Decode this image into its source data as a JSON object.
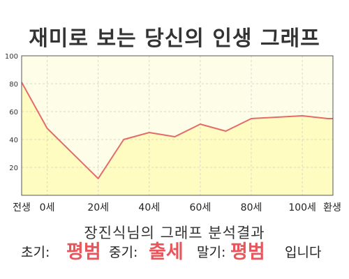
{
  "title": "재미로 보는 당신의 인생 그래프",
  "chart_data": {
    "type": "area",
    "x_categories": [
      "전생",
      "0세",
      "20세",
      "40세",
      "60세",
      "80세",
      "100세",
      "환생"
    ],
    "x_tick_positions": [
      -10,
      0,
      20,
      40,
      60,
      80,
      100,
      112
    ],
    "x": [
      -10,
      0,
      20,
      30,
      40,
      50,
      60,
      70,
      80,
      90,
      100,
      110,
      112
    ],
    "y": [
      81,
      48,
      12,
      40,
      45,
      42,
      51,
      46,
      55,
      56,
      57,
      55,
      55
    ],
    "ylim": [
      0,
      100
    ],
    "y_ticks": [
      20,
      40,
      60,
      80,
      100
    ],
    "grid": true,
    "line_color": "#e56a6a",
    "fill_color": "#fffcc2",
    "plot_bg": "#fefee8"
  },
  "summary": {
    "subtitle": "장진식님의 그래프 분석결과",
    "early_label": "초기:",
    "early_value": "평범",
    "middle_label": "중기:",
    "middle_value": "출세",
    "late_label": "말기:",
    "late_value": "평범",
    "ending": "입니다"
  }
}
